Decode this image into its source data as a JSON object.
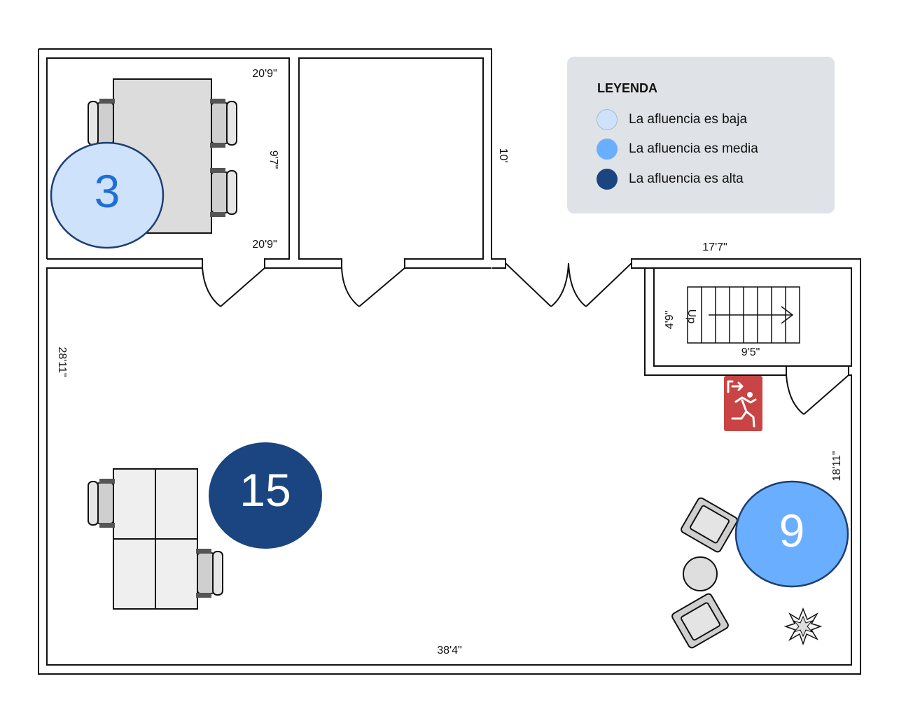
{
  "legend": {
    "title": "LEYENDA",
    "items": [
      {
        "label": "La afluencia es baja",
        "color": "#cfe2fc"
      },
      {
        "label": "La afluencia es media",
        "color": "#6aaeff"
      },
      {
        "label": "La afluencia es alta",
        "color": "#1b4580"
      }
    ]
  },
  "occupancy": {
    "meeting_room": {
      "count": "3",
      "level": "baja"
    },
    "open_area": {
      "count": "15",
      "level": "alta"
    },
    "lounge": {
      "count": "9",
      "level": "media"
    }
  },
  "dimensions": {
    "meeting_top": "20'9\"",
    "meeting_bottom": "20'9\"",
    "meeting_side": "9'7\"",
    "corridor": "10'",
    "stair_room_top": "17'7\"",
    "stair_height": "4'9\"",
    "stair_width": "9'5\"",
    "left_wall": "28'11\"",
    "right_wall": "18'11\"",
    "bottom_wall": "38'4\""
  },
  "stairs": {
    "label": "Up"
  },
  "colors": {
    "wall": "#111111",
    "table": "#dcdcdc",
    "desk": "#efefef",
    "exit_sign": "#c94444",
    "bubble_border": "#1d3f73"
  },
  "icons": {
    "exit": "emergency-exit-icon",
    "plant": "plant-icon",
    "chair": "chair-icon"
  }
}
